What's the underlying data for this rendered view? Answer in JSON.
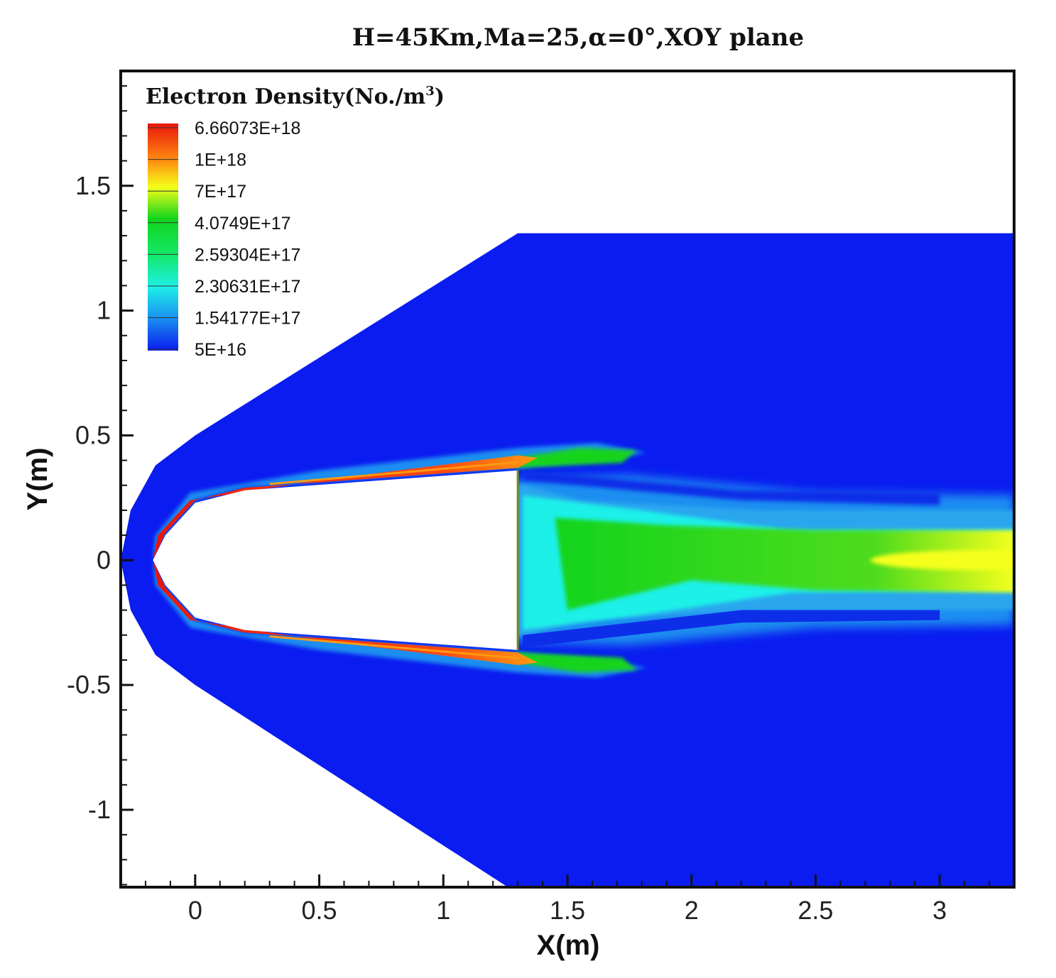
{
  "chart_data": {
    "type": "heatmap",
    "title": "H=45Km,Ma=25,α=0°,XOY plane",
    "xlabel": "X(m)",
    "ylabel": "Y(m)",
    "xlim": [
      -0.3,
      3.3
    ],
    "ylim": [
      -1.31,
      1.96
    ],
    "x_ticks": [
      {
        "value": 0,
        "label": "0"
      },
      {
        "value": 0.5,
        "label": "0.5"
      },
      {
        "value": 1,
        "label": "1"
      },
      {
        "value": 1.5,
        "label": "1.5"
      },
      {
        "value": 2,
        "label": "2"
      },
      {
        "value": 2.5,
        "label": "2.5"
      },
      {
        "value": 3,
        "label": "3"
      }
    ],
    "y_ticks": [
      {
        "value": 1.5,
        "label": "1.5"
      },
      {
        "value": 1,
        "label": "1"
      },
      {
        "value": 0.5,
        "label": "0.5"
      },
      {
        "value": 0,
        "label": "0"
      },
      {
        "value": -0.5,
        "label": "-0.5"
      },
      {
        "value": -1,
        "label": "-1"
      }
    ],
    "legend": {
      "title": "Electron Density(No./m",
      "title_superscript": "3",
      "title_suffix": ")",
      "placement": "top-left",
      "levels": [
        {
          "label": "6.66073E+18",
          "color": "#e8150c"
        },
        {
          "label": "1E+18",
          "color": "#ff9a12"
        },
        {
          "label": "7E+17",
          "color": "#f4ff1a"
        },
        {
          "label": "4.0749E+17",
          "color": "#12d41c"
        },
        {
          "label": "2.59304E+17",
          "color": "#14e86a"
        },
        {
          "label": "2.30631E+17",
          "color": "#1ef0e8"
        },
        {
          "label": "1.54177E+17",
          "color": "#1a8ef0"
        },
        {
          "label": "5E+16",
          "color": "#0a1cf0"
        }
      ]
    },
    "field": {
      "background_color": "#0a1cf0",
      "shock_boundary": [
        [
          1.3,
          1.31
        ],
        [
          0.0,
          0.5
        ],
        [
          -0.16,
          0.38
        ],
        [
          -0.26,
          0.2
        ],
        [
          -0.3,
          0.0
        ],
        [
          -0.26,
          -0.2
        ],
        [
          -0.16,
          -0.38
        ],
        [
          0.0,
          -0.5
        ],
        [
          1.26,
          -1.31
        ]
      ],
      "body_outline": [
        [
          -0.17,
          0.0
        ],
        [
          -0.12,
          0.1
        ],
        [
          0.0,
          0.23
        ],
        [
          0.2,
          0.28
        ],
        [
          1.3,
          0.36
        ],
        [
          1.3,
          -0.36
        ],
        [
          0.2,
          -0.28
        ],
        [
          0.0,
          -0.23
        ],
        [
          -0.12,
          -0.1
        ]
      ]
    }
  }
}
